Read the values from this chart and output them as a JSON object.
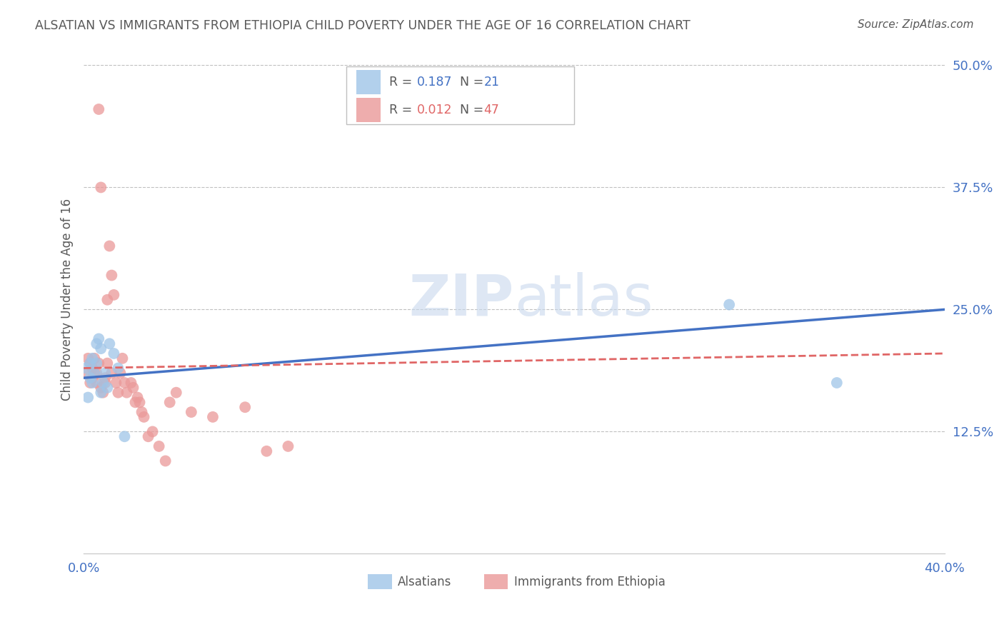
{
  "title": "ALSATIAN VS IMMIGRANTS FROM ETHIOPIA CHILD POVERTY UNDER THE AGE OF 16 CORRELATION CHART",
  "source": "Source: ZipAtlas.com",
  "ylabel": "Child Poverty Under the Age of 16",
  "ytick_labels": [
    "50.0%",
    "37.5%",
    "25.0%",
    "12.5%"
  ],
  "ytick_values": [
    0.5,
    0.375,
    0.25,
    0.125
  ],
  "xmin": 0.0,
  "xmax": 0.4,
  "ymin": 0.0,
  "ymax": 0.52,
  "legend_r1": "R = ",
  "legend_v1": "0.187",
  "legend_n1_label": "N = ",
  "legend_n1_val": "21",
  "legend_r2": "R = ",
  "legend_v2": "0.012",
  "legend_n2_label": "N = ",
  "legend_n2_val": "47",
  "legend_label1": "Alsatians",
  "legend_label2": "Immigrants from Ethiopia",
  "blue_color": "#9fc5e8",
  "pink_color": "#ea9999",
  "line_blue": "#4472c4",
  "line_pink": "#e06666",
  "title_color": "#595959",
  "axis_label_color": "#4472c4",
  "watermark_zip": "ZIP",
  "watermark_atlas": "atlas",
  "alsatian_x": [
    0.001,
    0.002,
    0.003,
    0.003,
    0.004,
    0.004,
    0.005,
    0.006,
    0.006,
    0.007,
    0.008,
    0.008,
    0.009,
    0.01,
    0.011,
    0.012,
    0.014,
    0.016,
    0.019,
    0.3,
    0.35
  ],
  "alsatian_y": [
    0.19,
    0.16,
    0.18,
    0.195,
    0.175,
    0.2,
    0.185,
    0.195,
    0.215,
    0.22,
    0.165,
    0.21,
    0.175,
    0.185,
    0.17,
    0.215,
    0.205,
    0.19,
    0.12,
    0.255,
    0.175
  ],
  "ethiopia_x": [
    0.001,
    0.002,
    0.003,
    0.003,
    0.004,
    0.004,
    0.005,
    0.005,
    0.006,
    0.006,
    0.007,
    0.007,
    0.008,
    0.008,
    0.009,
    0.01,
    0.01,
    0.011,
    0.011,
    0.012,
    0.013,
    0.013,
    0.014,
    0.015,
    0.016,
    0.017,
    0.018,
    0.019,
    0.02,
    0.022,
    0.023,
    0.024,
    0.025,
    0.026,
    0.027,
    0.028,
    0.03,
    0.032,
    0.035,
    0.038,
    0.04,
    0.043,
    0.05,
    0.06,
    0.075,
    0.085,
    0.095
  ],
  "ethiopia_y": [
    0.185,
    0.2,
    0.195,
    0.175,
    0.19,
    0.18,
    0.2,
    0.185,
    0.185,
    0.175,
    0.455,
    0.195,
    0.375,
    0.17,
    0.165,
    0.18,
    0.175,
    0.195,
    0.26,
    0.315,
    0.185,
    0.285,
    0.265,
    0.175,
    0.165,
    0.185,
    0.2,
    0.175,
    0.165,
    0.175,
    0.17,
    0.155,
    0.16,
    0.155,
    0.145,
    0.14,
    0.12,
    0.125,
    0.11,
    0.095,
    0.155,
    0.165,
    0.145,
    0.14,
    0.15,
    0.105,
    0.11
  ],
  "blue_line_x": [
    0.0,
    0.4
  ],
  "blue_line_y": [
    0.18,
    0.25
  ],
  "pink_line_x": [
    0.0,
    0.4
  ],
  "pink_line_y": [
    0.19,
    0.205
  ]
}
